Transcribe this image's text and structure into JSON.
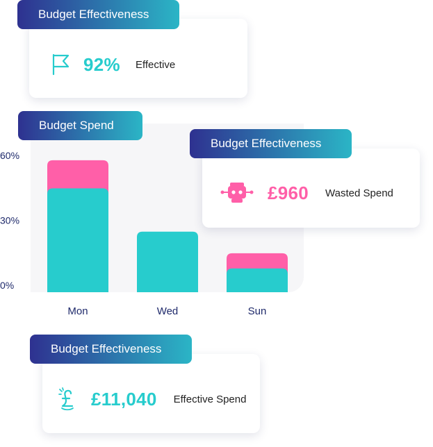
{
  "colors": {
    "teal": "#27cccd",
    "pink": "#ff5fa8",
    "navy": "#1f2a6b",
    "gradient_start": "#2e3190",
    "gradient_end": "#2bb5c6"
  },
  "card_effective": {
    "badge": "Budget Effectiveness",
    "icon": "flag-icon",
    "value": "92%",
    "label": "Effective"
  },
  "card_wasted": {
    "badge": "Budget Effectiveness",
    "icon": "robot-icon",
    "value": "£960",
    "label": "Wasted Spend"
  },
  "card_effective_spend": {
    "badge": "Budget Effectiveness",
    "icon": "pound-coin-icon",
    "value": "£11,040",
    "label": "Effective Spend"
  },
  "chart_data": {
    "type": "bar",
    "title": "Budget Spend",
    "categories": [
      "Mon",
      "Wed",
      "Sun"
    ],
    "series": [
      {
        "color": "#27cccd",
        "values": [
          48,
          28,
          11
        ]
      },
      {
        "color": "#ff5fa8",
        "values": [
          13,
          0,
          7
        ]
      }
    ],
    "stacked": true,
    "ylim": [
      0,
      60
    ],
    "yticks": [
      0,
      30,
      60
    ],
    "ytick_labels": [
      "0%",
      "30%",
      "60%"
    ],
    "xlabel": "",
    "ylabel": "",
    "grid": false,
    "legend": "none"
  }
}
